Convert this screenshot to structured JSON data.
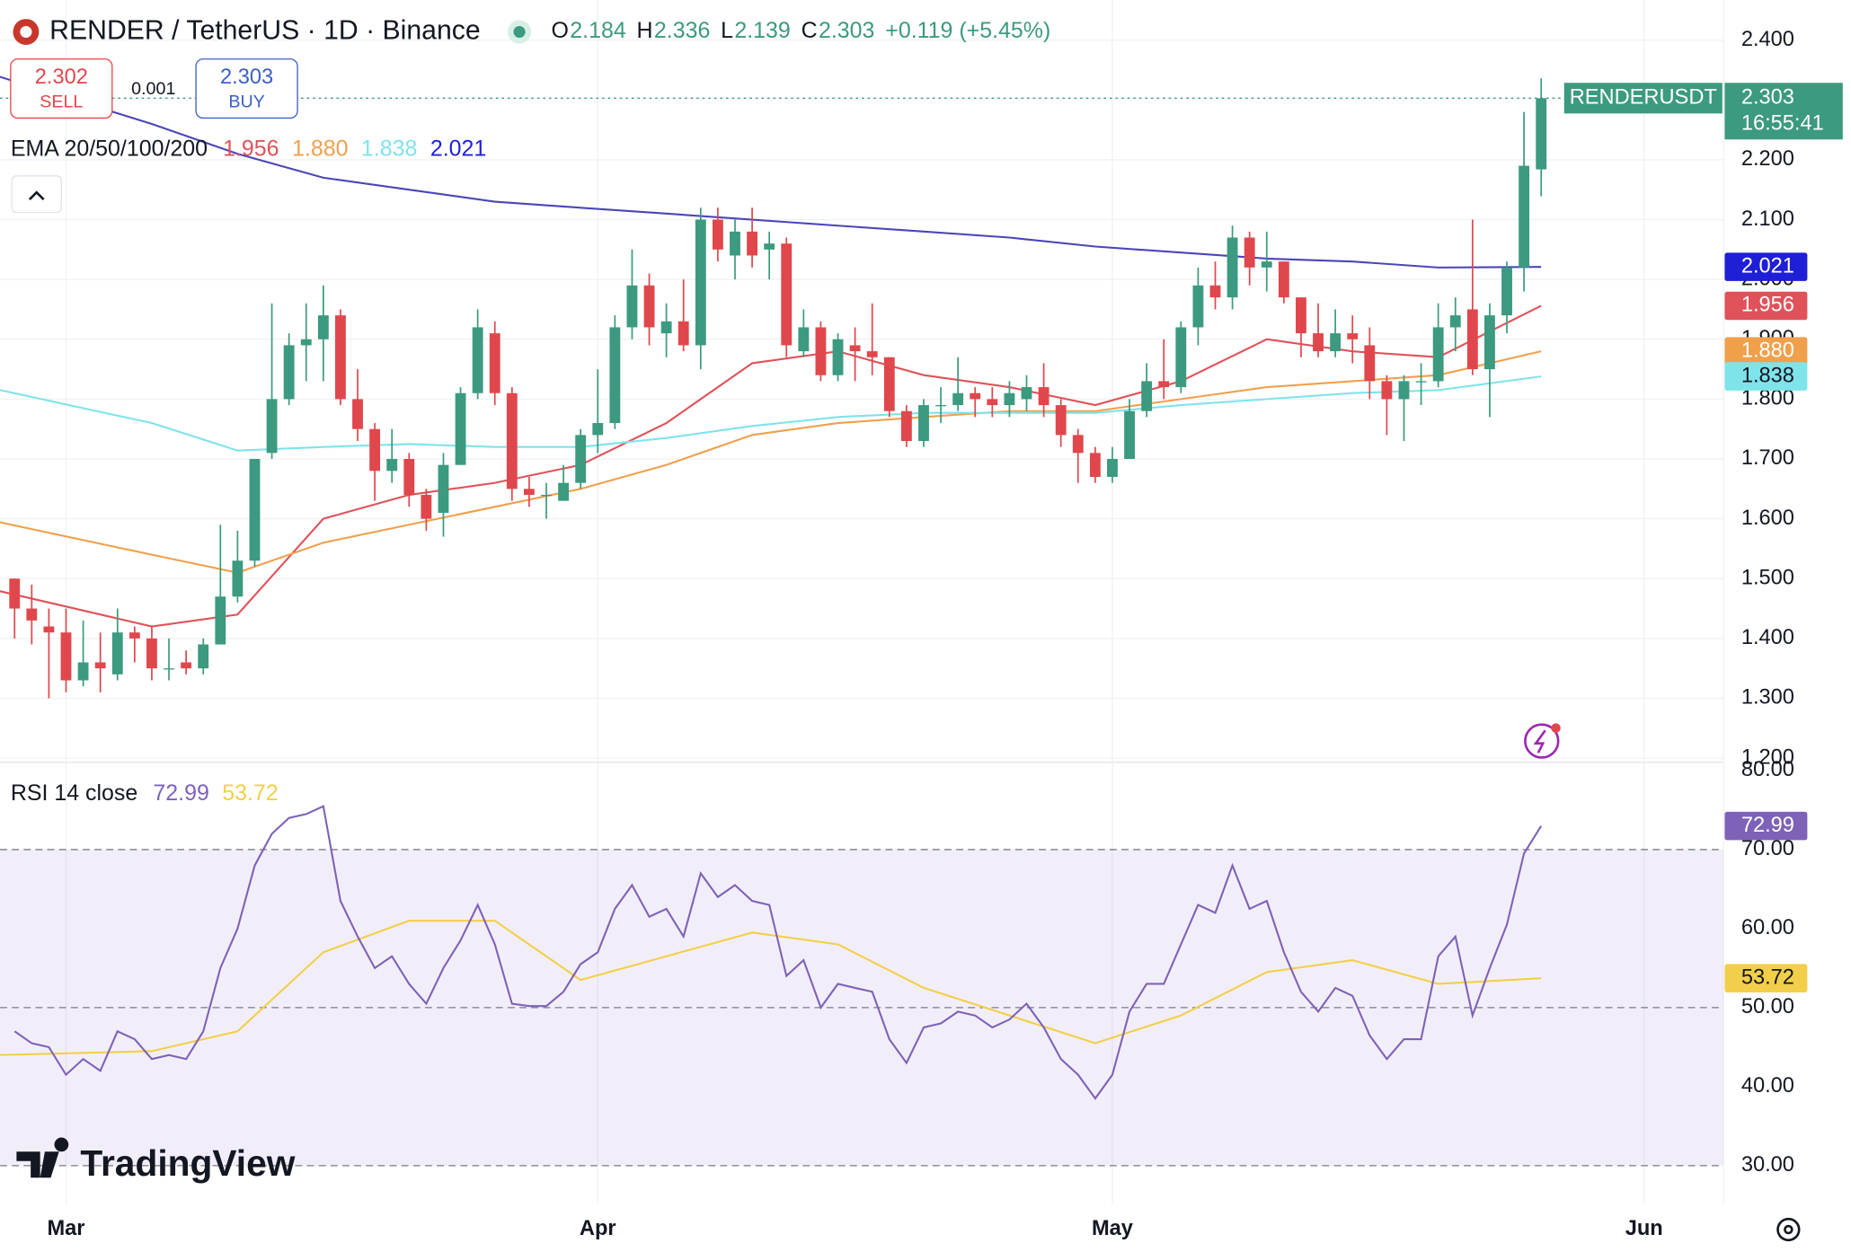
{
  "chart_data": {
    "type": "candlestick",
    "title": "RENDER / TetherUS · 1D · Binance",
    "ohlc_header": [
      "O",
      "2.184",
      "H",
      "2.336",
      "L",
      "2.139",
      "C",
      "2.303",
      "+0.119 (+5.45%)"
    ],
    "sell": {
      "price": "2.302",
      "label": "SELL"
    },
    "spread": "0.001",
    "buy": {
      "price": "2.303",
      "label": "BUY"
    },
    "symbol_label": "RENDERUSDT",
    "last_price_label": "2.303",
    "countdown": "16:55:41",
    "brand": "TradingView",
    "x": [
      -3,
      -2,
      -1,
      0,
      1,
      2,
      3,
      4,
      5,
      6,
      7,
      8,
      9,
      10,
      11,
      12,
      13,
      14,
      15,
      16,
      17,
      18,
      19,
      20,
      21,
      22,
      23,
      24,
      25,
      26,
      27,
      28,
      29,
      30,
      31,
      32,
      33,
      34,
      35,
      36,
      37,
      38,
      39,
      40,
      41,
      42,
      43,
      44,
      45,
      46,
      47,
      48,
      49,
      50,
      51,
      52,
      53,
      54,
      55,
      56,
      57,
      58,
      59,
      60,
      61,
      62,
      63,
      64,
      65,
      66,
      67,
      68,
      69,
      70,
      71,
      72,
      73,
      74,
      75,
      76,
      77,
      78,
      79,
      80,
      81,
      82,
      83,
      84,
      85,
      86
    ],
    "open": [
      1.5,
      1.45,
      1.42,
      1.41,
      1.33,
      1.36,
      1.34,
      1.41,
      1.4,
      1.35,
      1.36,
      1.35,
      1.39,
      1.47,
      1.53,
      1.71,
      1.8,
      1.89,
      1.9,
      1.94,
      1.8,
      1.75,
      1.68,
      1.7,
      1.64,
      1.61,
      1.69,
      1.81,
      1.91,
      1.81,
      1.65,
      1.64,
      1.63,
      1.66,
      1.74,
      1.76,
      1.92,
      1.99,
      1.91,
      1.93,
      1.89,
      2.1,
      2.04,
      2.08,
      2.05,
      2.06,
      1.88,
      1.92,
      1.84,
      1.89,
      1.88,
      1.87,
      1.78,
      1.73,
      1.79,
      1.79,
      1.81,
      1.8,
      1.79,
      1.8,
      1.82,
      1.79,
      1.74,
      1.71,
      1.67,
      1.7,
      1.78,
      1.83,
      1.82,
      1.92,
      1.99,
      1.97,
      2.07,
      2.02,
      2.03,
      1.97,
      1.91,
      1.88,
      1.91,
      1.89,
      1.83,
      1.8,
      1.83,
      1.83,
      1.92,
      1.95,
      1.85,
      1.94,
      2.02,
      2.184
    ],
    "high": [
      1.5,
      1.49,
      1.45,
      1.45,
      1.43,
      1.41,
      1.45,
      1.42,
      1.42,
      1.4,
      1.38,
      1.4,
      1.59,
      1.58,
      1.7,
      1.96,
      1.91,
      1.96,
      1.99,
      1.95,
      1.85,
      1.76,
      1.75,
      1.71,
      1.65,
      1.71,
      1.82,
      1.95,
      1.93,
      1.82,
      1.67,
      1.66,
      1.69,
      1.75,
      1.85,
      1.94,
      2.05,
      2.01,
      1.96,
      2.0,
      2.12,
      2.12,
      2.1,
      2.12,
      2.08,
      2.07,
      1.95,
      1.93,
      1.91,
      1.92,
      1.96,
      1.87,
      1.79,
      1.8,
      1.82,
      1.87,
      1.82,
      1.82,
      1.83,
      1.84,
      1.86,
      1.8,
      1.75,
      1.72,
      1.72,
      1.8,
      1.86,
      1.9,
      1.93,
      2.02,
      2.03,
      2.09,
      2.08,
      2.08,
      2.03,
      1.97,
      1.96,
      1.95,
      1.94,
      1.92,
      1.84,
      1.84,
      1.86,
      1.96,
      1.97,
      2.1,
      1.96,
      2.03,
      2.28,
      2.336
    ],
    "low": [
      1.4,
      1.39,
      1.3,
      1.31,
      1.32,
      1.31,
      1.33,
      1.36,
      1.33,
      1.33,
      1.34,
      1.34,
      1.39,
      1.46,
      1.52,
      1.7,
      1.79,
      1.83,
      1.83,
      1.79,
      1.73,
      1.63,
      1.66,
      1.62,
      1.58,
      1.57,
      1.69,
      1.8,
      1.79,
      1.63,
      1.62,
      1.6,
      1.63,
      1.65,
      1.71,
      1.75,
      1.9,
      1.89,
      1.87,
      1.88,
      1.85,
      2.03,
      2.0,
      2.02,
      2.0,
      1.87,
      1.87,
      1.83,
      1.83,
      1.83,
      1.84,
      1.77,
      1.72,
      1.72,
      1.76,
      1.78,
      1.77,
      1.77,
      1.77,
      1.78,
      1.77,
      1.72,
      1.66,
      1.66,
      1.66,
      1.7,
      1.77,
      1.8,
      1.81,
      1.89,
      1.95,
      1.95,
      1.99,
      1.98,
      1.96,
      1.87,
      1.87,
      1.87,
      1.86,
      1.8,
      1.74,
      1.73,
      1.79,
      1.82,
      1.88,
      1.84,
      1.77,
      1.91,
      1.98,
      2.139
    ],
    "close": [
      1.45,
      1.43,
      1.41,
      1.33,
      1.36,
      1.35,
      1.41,
      1.4,
      1.35,
      1.35,
      1.35,
      1.39,
      1.47,
      1.53,
      1.7,
      1.8,
      1.89,
      1.9,
      1.94,
      1.8,
      1.75,
      1.68,
      1.7,
      1.64,
      1.6,
      1.69,
      1.81,
      1.92,
      1.81,
      1.65,
      1.64,
      1.64,
      1.66,
      1.74,
      1.76,
      1.92,
      1.99,
      1.92,
      1.93,
      1.89,
      2.1,
      2.05,
      2.08,
      2.04,
      2.06,
      1.89,
      1.92,
      1.84,
      1.9,
      1.88,
      1.87,
      1.78,
      1.73,
      1.79,
      1.79,
      1.81,
      1.8,
      1.79,
      1.81,
      1.82,
      1.79,
      1.74,
      1.71,
      1.67,
      1.7,
      1.78,
      1.83,
      1.82,
      1.92,
      1.99,
      1.97,
      2.07,
      2.02,
      2.03,
      1.97,
      1.91,
      1.88,
      1.91,
      1.9,
      1.83,
      1.8,
      1.83,
      1.83,
      1.92,
      1.94,
      1.85,
      1.94,
      2.02,
      2.19,
      2.303
    ],
    "up_color": "#3b9a7f",
    "down_color": "#e0474c",
    "xlim": [
      -3.85,
      96.63
    ],
    "xticks": [
      {
        "value": 0,
        "label": "Mar"
      },
      {
        "value": 31,
        "label": "Apr"
      },
      {
        "value": 61,
        "label": "May"
      },
      {
        "value": 92,
        "label": "Jun"
      }
    ],
    "ylim": [
      1.195,
      2.467
    ],
    "yticks": [
      {
        "value": 1.2,
        "label": "1.200"
      },
      {
        "value": 1.3,
        "label": "1.300"
      },
      {
        "value": 1.4,
        "label": "1.400"
      },
      {
        "value": 1.5,
        "label": "1.500"
      },
      {
        "value": 1.6,
        "label": "1.600"
      },
      {
        "value": 1.7,
        "label": "1.700"
      },
      {
        "value": 1.8,
        "label": "1.800"
      },
      {
        "value": 1.9,
        "label": "1.900"
      },
      {
        "value": 2.0,
        "label": "2.000"
      },
      {
        "value": 2.1,
        "label": "2.100"
      },
      {
        "value": 2.2,
        "label": "2.200"
      },
      {
        "value": 2.4,
        "label": "2.400"
      }
    ],
    "grid": true,
    "ema": {
      "label": "EMA 20/50/100/200",
      "x": [
        -4,
        5,
        10,
        15,
        20,
        25,
        30,
        35,
        40,
        45,
        50,
        55,
        60,
        65,
        70,
        75,
        80,
        86
      ],
      "series": [
        {
          "color": "#e0525a",
          "last_label": "1.956",
          "values": [
            1.48,
            1.42,
            1.44,
            1.6,
            1.64,
            1.66,
            1.69,
            1.76,
            1.86,
            1.88,
            1.84,
            1.82,
            1.79,
            1.83,
            1.9,
            1.88,
            1.87,
            1.956
          ]
        },
        {
          "color": "#f0a04b",
          "last_label": "1.880",
          "values": [
            1.595,
            1.54,
            1.51,
            1.56,
            1.59,
            1.62,
            1.65,
            1.69,
            1.74,
            1.76,
            1.77,
            1.78,
            1.78,
            1.8,
            1.82,
            1.83,
            1.84,
            1.88
          ]
        },
        {
          "color": "#7fe3ea",
          "last_label": "1.838",
          "values": [
            1.816,
            1.76,
            1.714,
            1.72,
            1.725,
            1.72,
            1.72,
            1.735,
            1.755,
            1.77,
            1.777,
            1.777,
            1.777,
            1.79,
            1.8,
            1.81,
            1.815,
            1.838
          ]
        },
        {
          "color": "#4a46b8",
          "label_color": "#1f1fd6",
          "last_label": "2.021",
          "values": [
            2.34,
            2.26,
            2.21,
            2.17,
            2.15,
            2.13,
            2.12,
            2.11,
            2.1,
            2.09,
            2.08,
            2.07,
            2.055,
            2.045,
            2.035,
            2.03,
            2.02,
            2.021
          ]
        }
      ]
    },
    "rsi": {
      "label": "RSI 14 close",
      "color": "#7e62b8",
      "last_label": "72.99",
      "values": [
        47,
        45.5,
        45,
        41.5,
        43.5,
        42,
        47,
        46,
        43.5,
        44,
        43.5,
        47,
        55,
        60,
        68,
        72,
        74,
        74.5,
        75.5,
        63.5,
        59,
        55,
        56.5,
        53,
        50.5,
        55,
        58.5,
        63,
        58,
        50.5,
        50.2,
        50.2,
        52,
        55.5,
        57,
        62.5,
        65.5,
        61.5,
        62.5,
        59,
        67,
        64,
        65.5,
        63.5,
        63,
        54,
        56,
        50,
        53,
        52.5,
        52,
        46,
        43,
        47.5,
        48,
        49.5,
        49,
        47.5,
        48.5,
        50.5,
        47.5,
        43.5,
        41.5,
        38.5,
        41.5,
        49.5,
        53,
        53,
        58,
        63,
        62,
        68,
        62.5,
        63.5,
        57,
        52,
        49.5,
        52.5,
        51.5,
        46.5,
        43.5,
        46,
        46,
        56.5,
        59,
        49,
        55,
        60.5,
        69.5,
        72.99
      ],
      "ma": {
        "color": "#f2cf4a",
        "last_label": "53.72",
        "values": [
          44,
          44.5,
          47,
          57,
          61,
          61,
          53.5,
          56.5,
          59.5,
          58,
          52.5,
          49,
          45.5,
          49,
          54.5,
          56,
          53,
          53.72
        ]
      },
      "ylim": [
        25.2,
        80.75
      ],
      "yticks": [
        {
          "value": 30,
          "label": "30.00"
        },
        {
          "value": 40,
          "label": "40.00"
        },
        {
          "value": 50,
          "label": "50.00"
        },
        {
          "value": 60,
          "label": "60.00"
        },
        {
          "value": 70,
          "label": "70.00"
        },
        {
          "value": 80,
          "label": "80.00"
        }
      ],
      "dashed": [
        70,
        50,
        30
      ],
      "band": [
        30,
        70
      ],
      "band_color": "#7e57c2"
    }
  }
}
